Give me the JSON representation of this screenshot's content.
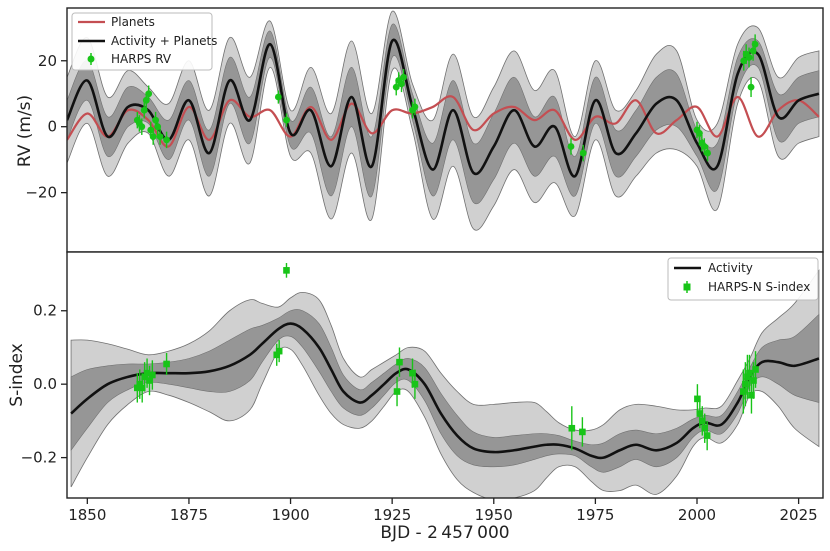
{
  "colors": {
    "planets": "#c44e52",
    "activity": "#111111",
    "harps": "#18c418",
    "band_inner": "#8c8c8c",
    "band_outer": "#d0d0d0",
    "band_edge": "#707070",
    "axes": "#222222"
  },
  "chart_data": [
    {
      "type": "line",
      "panel": "top",
      "ylabel": "RV (m/s)",
      "xlim": [
        1845,
        2031
      ],
      "ylim": [
        -38,
        36
      ],
      "yticks": [
        20,
        0,
        -20
      ],
      "ytick_labels": [
        "20",
        "0",
        "−20"
      ],
      "legend": {
        "location": "top-left",
        "entries": [
          "Planets",
          "Activity + Planets",
          "HARPS RV"
        ]
      },
      "series": [
        {
          "name": "Planets",
          "x": [
            1845,
            1850,
            1855,
            1860,
            1865,
            1870,
            1875,
            1880,
            1885,
            1890,
            1895,
            1900,
            1905,
            1910,
            1915,
            1920,
            1925,
            1930,
            1935,
            1940,
            1945,
            1950,
            1955,
            1960,
            1965,
            1970,
            1975,
            1980,
            1985,
            1990,
            1995,
            2000,
            2005,
            2010,
            2015,
            2020,
            2025,
            2030
          ],
          "y": [
            -4,
            4,
            -3,
            5,
            2,
            -6,
            6,
            -4,
            8,
            3,
            5,
            -3,
            6,
            -4,
            7,
            -2,
            5,
            4,
            6,
            9,
            -1,
            4,
            6,
            2,
            5,
            -4,
            3,
            1,
            8,
            -2,
            2,
            6,
            -3,
            9,
            -3,
            5,
            8,
            3
          ]
        },
        {
          "name": "Activity + Planets",
          "x": [
            1845,
            1850,
            1855,
            1860,
            1865,
            1870,
            1875,
            1880,
            1885,
            1890,
            1895,
            1900,
            1905,
            1910,
            1915,
            1920,
            1925,
            1930,
            1935,
            1940,
            1945,
            1950,
            1955,
            1960,
            1965,
            1970,
            1975,
            1980,
            1985,
            1990,
            1995,
            2000,
            2005,
            2010,
            2015,
            2020,
            2025,
            2030
          ],
          "y": [
            2,
            14,
            -3,
            6,
            5,
            -4,
            8,
            -8,
            14,
            2,
            25,
            -2,
            5,
            -12,
            9,
            -12,
            26,
            6,
            -13,
            5,
            -14,
            -6,
            5,
            -6,
            0,
            -15,
            8,
            -8,
            -2,
            7,
            8,
            -5,
            -12,
            16,
            22,
            3,
            8,
            10
          ],
          "band_inner_halfwidth": [
            6,
            6,
            6,
            6,
            4,
            6,
            6,
            7,
            7,
            7,
            4,
            4,
            7,
            9,
            9,
            9,
            5,
            4,
            8,
            9,
            9,
            10,
            10,
            9,
            9,
            6,
            7,
            7,
            7,
            8,
            8,
            4,
            7,
            5,
            4,
            7,
            7,
            7
          ],
          "band_outer_halfwidth": [
            13,
            13,
            12,
            11,
            7,
            11,
            12,
            13,
            13,
            13,
            7,
            7,
            13,
            16,
            17,
            16,
            9,
            7,
            15,
            17,
            17,
            18,
            18,
            17,
            17,
            12,
            12,
            13,
            13,
            15,
            15,
            7,
            13,
            9,
            8,
            12,
            13,
            13
          ]
        }
      ],
      "points": {
        "name": "HARPS RV",
        "x": [
          1862.3,
          1862.8,
          1863.4,
          1864.0,
          1864.5,
          1865.1,
          1865.6,
          1866.2,
          1866.8,
          1867.3,
          1867.9,
          1869.5,
          1897.0,
          1899.0,
          1926.0,
          1926.6,
          1927.3,
          1927.8,
          1930.0,
          1930.6,
          1969.0,
          1972.0,
          2000.0,
          2000.6,
          2001.2,
          2001.8,
          2002.6,
          2011.5,
          2012.1,
          2012.8,
          2013.3,
          2013.8,
          2014.3
        ],
        "y": [
          2,
          1,
          0,
          5,
          8,
          10,
          -1,
          -3,
          2,
          0,
          -3,
          -4,
          9,
          2,
          12,
          14,
          13,
          15,
          5,
          6,
          -6,
          -8,
          -1,
          -2,
          -5,
          -6,
          -8,
          20,
          22,
          21,
          12,
          23,
          25
        ],
        "err": [
          2.5,
          2.5,
          2.5,
          2.5,
          2.5,
          2.5,
          2.5,
          2.5,
          2.5,
          2.5,
          2.5,
          2.5,
          2.0,
          2.0,
          2.5,
          2.5,
          2.5,
          2.5,
          2.5,
          2.5,
          2.5,
          2.5,
          2.5,
          2.5,
          2.5,
          2.5,
          2.5,
          3.0,
          3.0,
          3.0,
          3.0,
          3.0,
          3.0
        ]
      }
    },
    {
      "type": "line",
      "panel": "bottom",
      "xlabel": "BJD - 2 457 000",
      "ylabel": "S-index",
      "xlim": [
        1845,
        2031
      ],
      "ylim": [
        -0.31,
        0.36
      ],
      "yticks": [
        0.2,
        0.0,
        -0.2
      ],
      "ytick_labels": [
        "0.2",
        "0.0",
        "−0.2"
      ],
      "xticks": [
        1850,
        1875,
        1900,
        1925,
        1950,
        1975,
        2000,
        2025
      ],
      "xtick_labels": [
        "1850",
        "1875",
        "1900",
        "1925",
        "1950",
        "1975",
        "2000",
        "2025"
      ],
      "legend": {
        "location": "top-right",
        "entries": [
          "Activity",
          "HARPS-N S-index"
        ]
      },
      "series": [
        {
          "name": "Activity",
          "x": [
            1846,
            1850,
            1855,
            1860,
            1865,
            1870,
            1875,
            1880,
            1885,
            1890,
            1893,
            1897,
            1900,
            1903,
            1907,
            1910,
            1913,
            1917,
            1920,
            1923,
            1926,
            1929,
            1933,
            1937,
            1941,
            1945,
            1950,
            1955,
            1960,
            1963,
            1966,
            1970,
            1974,
            1977,
            1981,
            1985,
            1990,
            1995,
            1999,
            2002,
            2006,
            2010,
            2013,
            2016,
            2020,
            2024,
            2030
          ],
          "y": [
            -0.08,
            -0.04,
            0.0,
            0.02,
            0.03,
            0.03,
            0.03,
            0.035,
            0.05,
            0.08,
            0.11,
            0.15,
            0.165,
            0.15,
            0.1,
            0.04,
            -0.02,
            -0.05,
            -0.03,
            0.0,
            0.03,
            0.04,
            0.0,
            -0.08,
            -0.14,
            -0.175,
            -0.185,
            -0.18,
            -0.17,
            -0.165,
            -0.165,
            -0.175,
            -0.195,
            -0.2,
            -0.18,
            -0.165,
            -0.18,
            -0.16,
            -0.12,
            -0.105,
            -0.11,
            -0.05,
            0.02,
            0.06,
            0.06,
            0.05,
            0.07
          ],
          "band_inner_halfwidth": [
            0.1,
            0.08,
            0.05,
            0.035,
            0.025,
            0.03,
            0.04,
            0.055,
            0.07,
            0.07,
            0.05,
            0.03,
            0.035,
            0.05,
            0.065,
            0.06,
            0.045,
            0.035,
            0.035,
            0.03,
            0.025,
            0.03,
            0.045,
            0.055,
            0.055,
            0.045,
            0.04,
            0.04,
            0.035,
            0.03,
            0.025,
            0.02,
            0.03,
            0.04,
            0.045,
            0.04,
            0.045,
            0.04,
            0.025,
            0.02,
            0.025,
            0.03,
            0.025,
            0.04,
            0.06,
            0.08,
            0.12
          ],
          "band_outer_halfwidth": [
            0.2,
            0.16,
            0.11,
            0.075,
            0.05,
            0.06,
            0.08,
            0.11,
            0.15,
            0.15,
            0.11,
            0.06,
            0.07,
            0.1,
            0.13,
            0.12,
            0.09,
            0.07,
            0.07,
            0.06,
            0.05,
            0.06,
            0.09,
            0.11,
            0.12,
            0.12,
            0.13,
            0.13,
            0.12,
            0.09,
            0.06,
            0.05,
            0.07,
            0.09,
            0.11,
            0.11,
            0.12,
            0.09,
            0.05,
            0.04,
            0.05,
            0.06,
            0.05,
            0.08,
            0.12,
            0.17,
            0.24
          ]
        }
      ],
      "points": {
        "name": "HARPS-N S-index",
        "x": [
          1862.3,
          1862.9,
          1863.5,
          1864.1,
          1864.7,
          1865.3,
          1866.0,
          1869.5,
          1896.6,
          1897.2,
          1899.0,
          1926.2,
          1926.8,
          1930.0,
          1930.6,
          1969.2,
          1971.8,
          2000.1,
          2000.7,
          2001.3,
          2001.9,
          2002.5,
          2011.4,
          2011.9,
          2012.4,
          2012.9,
          2013.4,
          2013.9,
          2014.4
        ],
        "y": [
          -0.01,
          0.0,
          -0.01,
          0.02,
          0.03,
          0.01,
          0.025,
          0.055,
          0.08,
          0.09,
          0.31,
          -0.02,
          0.06,
          0.03,
          0.0,
          -0.12,
          -0.13,
          -0.04,
          -0.08,
          -0.1,
          -0.12,
          -0.14,
          -0.02,
          0.0,
          0.02,
          0.03,
          -0.03,
          0.01,
          0.04
        ],
        "err": [
          0.04,
          0.04,
          0.04,
          0.04,
          0.04,
          0.04,
          0.04,
          0.03,
          0.03,
          0.03,
          0.02,
          0.04,
          0.04,
          0.04,
          0.04,
          0.06,
          0.04,
          0.04,
          0.04,
          0.04,
          0.04,
          0.04,
          0.06,
          0.06,
          0.06,
          0.05,
          0.05,
          0.05,
          0.05
        ]
      }
    }
  ]
}
